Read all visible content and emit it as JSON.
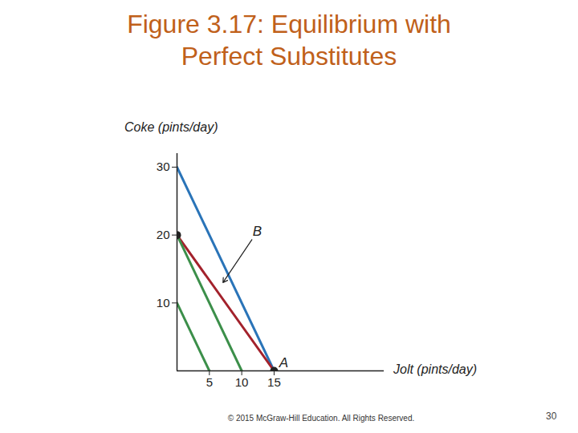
{
  "chart_data": {
    "type": "line",
    "title": "Figure 3.17: Equilibrium with Perfect Substitutes",
    "x_label": "Jolt (pints/day)",
    "y_label": "Coke (pints/day)",
    "xlim": [
      0,
      32
    ],
    "ylim": [
      0,
      32
    ],
    "xticks": [
      5,
      10,
      15
    ],
    "yticks": [
      10,
      20,
      30
    ],
    "series": [
      {
        "color": "#2a74b8",
        "x": [
          0,
          15
        ],
        "values": [
          30,
          0
        ]
      },
      {
        "color": "#a3222c",
        "x": [
          0,
          15
        ],
        "values": [
          20,
          0
        ],
        "marker": "circle"
      },
      {
        "color": "#3c8f4a",
        "x": [
          0,
          10
        ],
        "values": [
          20,
          0
        ]
      },
      {
        "color": "#3c8f4a",
        "x": [
          0,
          5
        ],
        "values": [
          10,
          0
        ]
      }
    ],
    "annotations": [
      {
        "text": "A",
        "x": 15,
        "y": 0
      },
      {
        "text": "B",
        "x": 12.4,
        "y": 20.5,
        "arrow_to": [
          7.1,
          13
        ]
      }
    ]
  },
  "copyright": "© 2015 McGraw-Hill Education. All Rights Reserved.",
  "page_number": "30"
}
